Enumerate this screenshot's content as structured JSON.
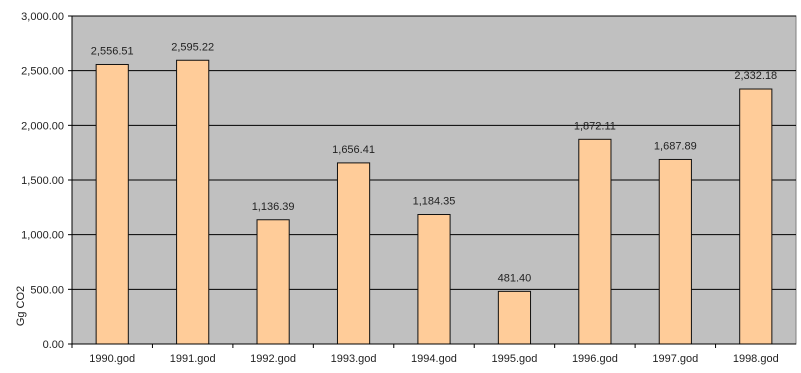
{
  "chart_data": {
    "type": "bar",
    "categories": [
      "1990.god",
      "1991.god",
      "1992.god",
      "1993.god",
      "1994.god",
      "1995.god",
      "1996.god",
      "1997.god",
      "1998.god"
    ],
    "values": [
      2556.51,
      2595.22,
      1136.39,
      1656.41,
      1184.35,
      481.4,
      1872.11,
      1687.89,
      2332.18
    ],
    "data_labels": [
      "2,556.51",
      "2,595.22",
      "1,136.39",
      "1,656.41",
      "1,184.35",
      "481.40",
      "1,872.11",
      "1,687.89",
      "2,332.18"
    ],
    "y_ticks": [
      0,
      500,
      1000,
      1500,
      2000,
      2500,
      3000
    ],
    "y_tick_labels": [
      "0.00",
      "500.00",
      "1,000.00",
      "1,500.00",
      "2,000.00",
      "2,500.00",
      "3,000.00"
    ],
    "ylim": [
      0,
      3000
    ],
    "ylabel": "Gg CO2",
    "xlabel": "",
    "title": "",
    "grid": true,
    "colors": {
      "bar_fill": "#ffcc99",
      "bar_stroke": "#111111",
      "plot_background": "#c0c0c0",
      "gridline": "#000000"
    }
  }
}
